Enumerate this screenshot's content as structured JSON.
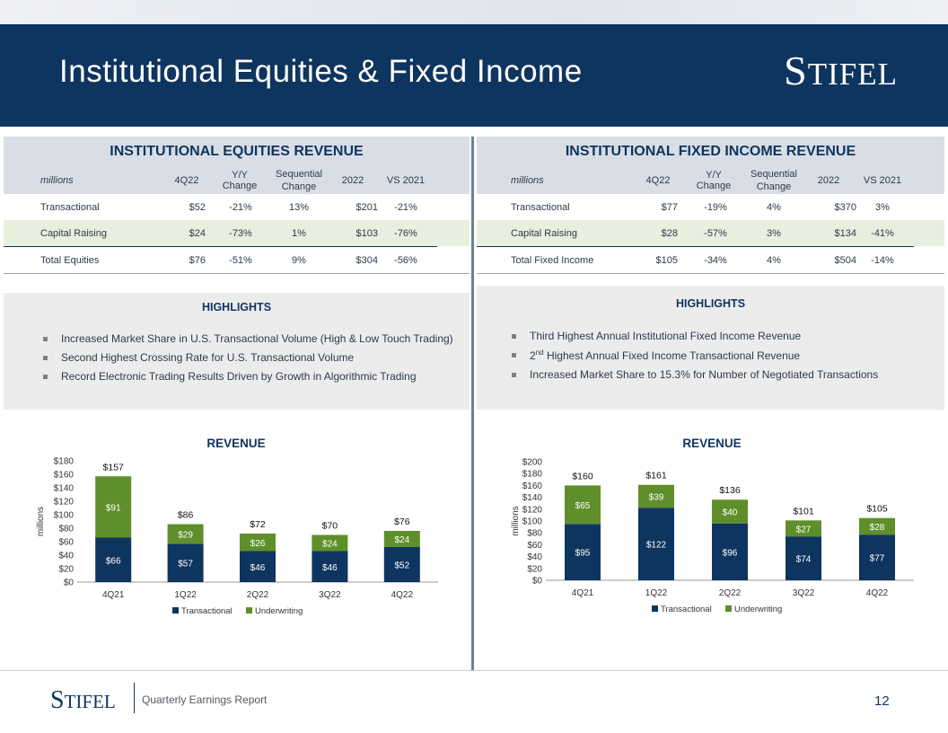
{
  "header": {
    "title": "Institutional Equities & Fixed Income",
    "logo": "Stifel"
  },
  "tables": [
    {
      "title": "INSTITUTIONAL EQUITIES REVENUE",
      "columns": [
        "millions",
        "4Q22",
        "Y/Y Change",
        "Sequential Change",
        "2022",
        "VS 2021"
      ],
      "rows": [
        [
          "Transactional",
          "$52",
          "-21%",
          "13%",
          "$201",
          "-21%"
        ],
        [
          "Capital Raising",
          "$24",
          "-73%",
          "1%",
          "$103",
          "-76%"
        ],
        [
          "Total Equities",
          "$76",
          "-51%",
          "9%",
          "$304",
          "-56%"
        ]
      ]
    },
    {
      "title": "INSTITUTIONAL FIXED INCOME REVENUE",
      "columns": [
        "millions",
        "4Q22",
        "Y/Y Change",
        "Sequential Change",
        "2022",
        "VS 2021"
      ],
      "rows": [
        [
          "Transactional",
          "$77",
          "-19%",
          "4%",
          "$370",
          "3%"
        ],
        [
          "Capital Raising",
          "$28",
          "-57%",
          "3%",
          "$134",
          "-41%"
        ],
        [
          "Total Fixed Income",
          "$105",
          "-34%",
          "4%",
          "$504",
          "-14%"
        ]
      ]
    }
  ],
  "highlights": [
    {
      "title": "HIGHLIGHTS",
      "items": [
        "Increased Market Share in U.S. Transactional Volume (High & Low Touch Trading)",
        "Second Highest Crossing Rate for U.S. Transactional Volume",
        "Record Electronic Trading Results Driven by Growth in Algorithmic Trading"
      ]
    },
    {
      "title": "HIGHLIGHTS",
      "items": [
        "Third Highest Annual Institutional Fixed Income Revenue",
        "2nd Highest Annual Fixed Income Transactional Revenue",
        "Increased Market Share to 15.3% for Number of Negotiated Transactions"
      ]
    }
  ],
  "colors": {
    "navy": "#0e355f",
    "green": "#5f8f2a"
  },
  "chart_data": [
    {
      "type": "bar",
      "stacked": true,
      "title": "REVENUE",
      "ylabel": "millions",
      "categories": [
        "4Q21",
        "1Q22",
        "2Q22",
        "3Q22",
        "4Q22"
      ],
      "series": [
        {
          "name": "Transactional",
          "values": [
            66,
            57,
            46,
            46,
            52
          ]
        },
        {
          "name": "Underwriting",
          "values": [
            91,
            29,
            26,
            24,
            24
          ]
        }
      ],
      "totals": [
        157,
        86,
        72,
        70,
        76
      ],
      "ylim": [
        0,
        180
      ],
      "yticks": [
        0,
        20,
        40,
        60,
        80,
        100,
        120,
        140,
        160,
        180
      ],
      "legend": "bottom"
    },
    {
      "type": "bar",
      "stacked": true,
      "title": "REVENUE",
      "ylabel": "millions",
      "categories": [
        "4Q21",
        "1Q22",
        "2Q22",
        "3Q22",
        "4Q22"
      ],
      "series": [
        {
          "name": "Transactional",
          "values": [
            95,
            122,
            96,
            74,
            77
          ]
        },
        {
          "name": "Underwriting",
          "values": [
            65,
            39,
            40,
            27,
            28
          ]
        }
      ],
      "totals": [
        160,
        161,
        136,
        101,
        105
      ],
      "ylim": [
        0,
        200
      ],
      "yticks": [
        0,
        20,
        40,
        60,
        80,
        100,
        120,
        140,
        160,
        180,
        200
      ],
      "legend": "bottom"
    }
  ],
  "footer": {
    "logo": "Stifel",
    "subtitle": "Quarterly Earnings Report",
    "page": "12"
  }
}
